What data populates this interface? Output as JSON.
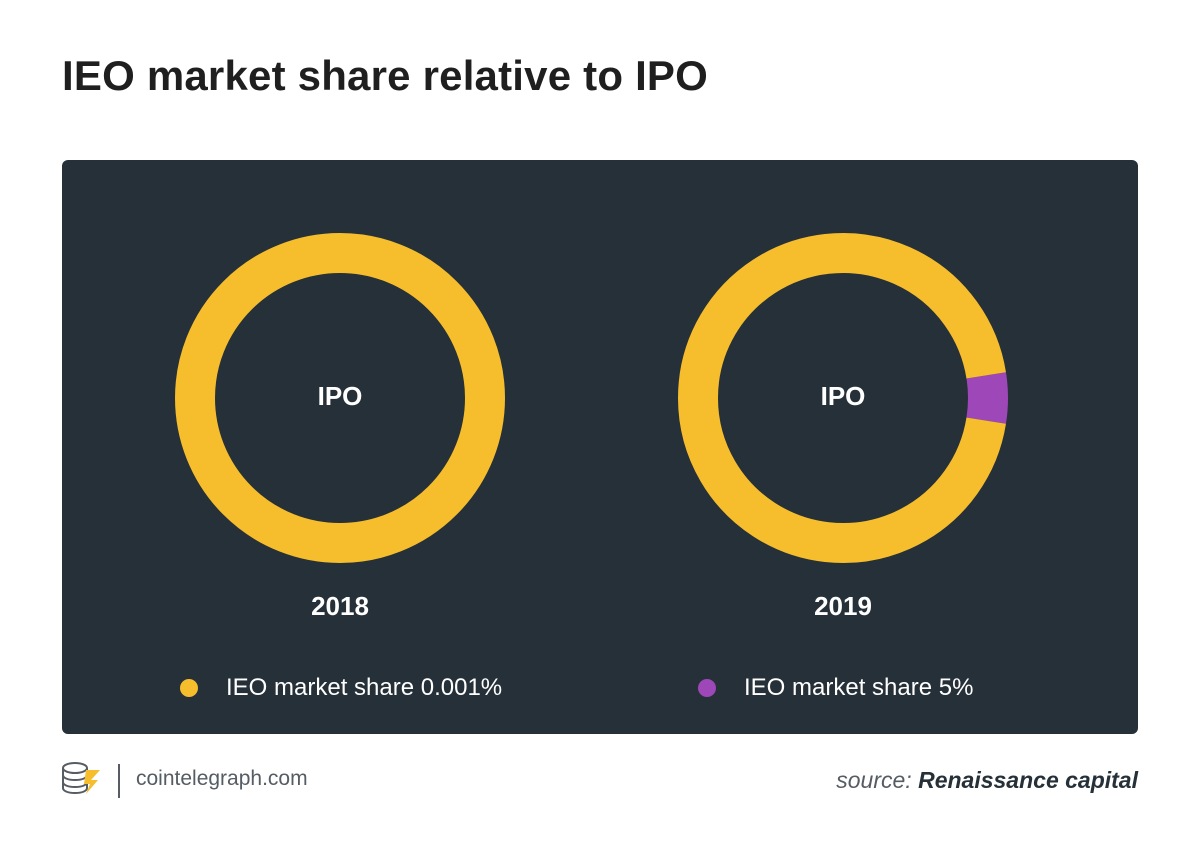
{
  "title": "IEO market share relative to IPO",
  "colors": {
    "ipo": "#f6bd2c",
    "ieo": "#9d47b8",
    "panel": "#263038"
  },
  "chart_data": [
    {
      "type": "donut",
      "title": "2018",
      "center_label": "IPO",
      "slices": [
        {
          "name": "IPO",
          "value": 99.999
        },
        {
          "name": "IEO",
          "value": 0.001
        }
      ],
      "legend_label": "IEO market share 0.001%"
    },
    {
      "type": "donut",
      "title": "2019",
      "center_label": "IPO",
      "slices": [
        {
          "name": "IPO",
          "value": 95
        },
        {
          "name": "IEO",
          "value": 5
        }
      ],
      "legend_label": "IEO market share 5%"
    }
  ],
  "footer": {
    "site": "cointelegraph.com",
    "source_prefix": "source:",
    "source_name": "Renaissance capital"
  }
}
